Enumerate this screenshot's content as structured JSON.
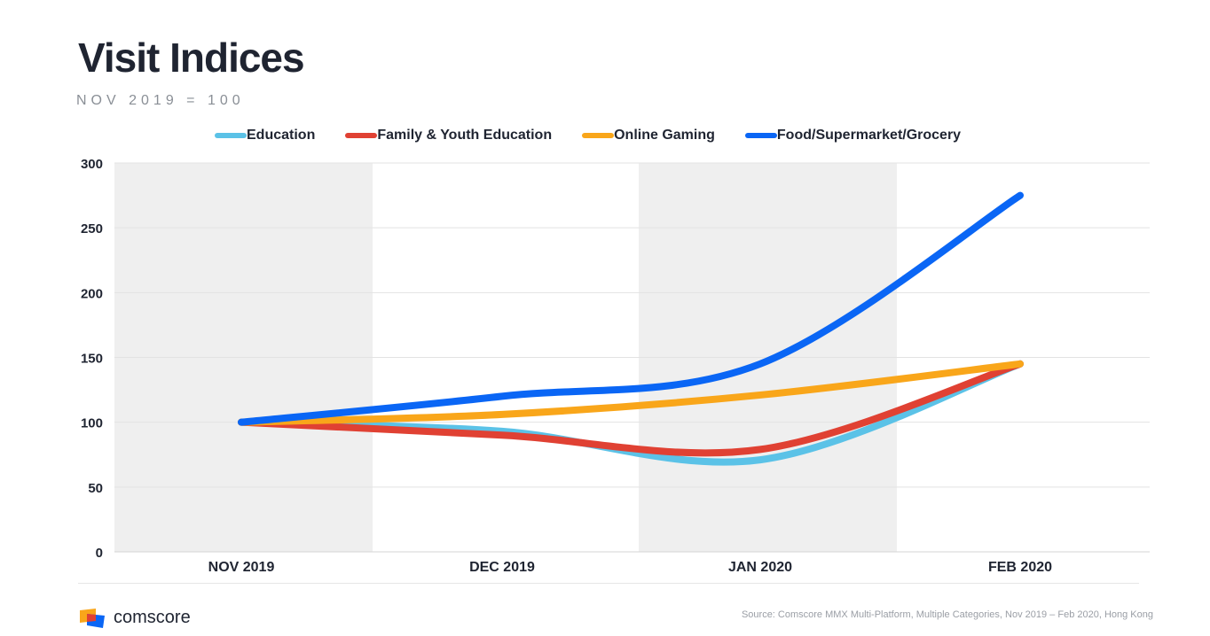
{
  "title": "Visit Indices",
  "subtitle": "NOV 2019 = 100",
  "brand": {
    "name": "comscore",
    "icon": "comscore-logo-icon"
  },
  "source": "Source: Comscore MMX Multi-Platform, Multiple Categories, Nov 2019 – Feb 2020, Hong Kong",
  "colors": {
    "Education": "#5bc2e7",
    "Family & Youth Education": "#e04133",
    "Online Gaming": "#f9a61a",
    "Food/Supermarket/Grocery": "#0a66f5",
    "band": "#efefef",
    "grid": "#e3e3e3",
    "text": "#1f2431"
  },
  "chart_data": {
    "type": "line",
    "title": "Visit Indices",
    "subtitle": "NOV 2019 = 100",
    "categories": [
      "NOV 2019",
      "DEC 2019",
      "JAN 2020",
      "FEB 2020"
    ],
    "ylim": [
      0,
      300
    ],
    "yticks": [
      0,
      50,
      100,
      150,
      200,
      250,
      300
    ],
    "grid": true,
    "legend_position": "top",
    "shaded_bands": [
      "NOV 2019",
      "JAN 2020"
    ],
    "series": [
      {
        "name": "Education",
        "values": [
          100,
          93,
          71,
          145
        ]
      },
      {
        "name": "Family & Youth Education",
        "values": [
          100,
          90,
          79,
          145
        ]
      },
      {
        "name": "Online Gaming",
        "values": [
          100,
          106,
          121,
          145
        ]
      },
      {
        "name": "Food/Supermarket/Grocery",
        "values": [
          100,
          120,
          145,
          275
        ]
      }
    ]
  }
}
